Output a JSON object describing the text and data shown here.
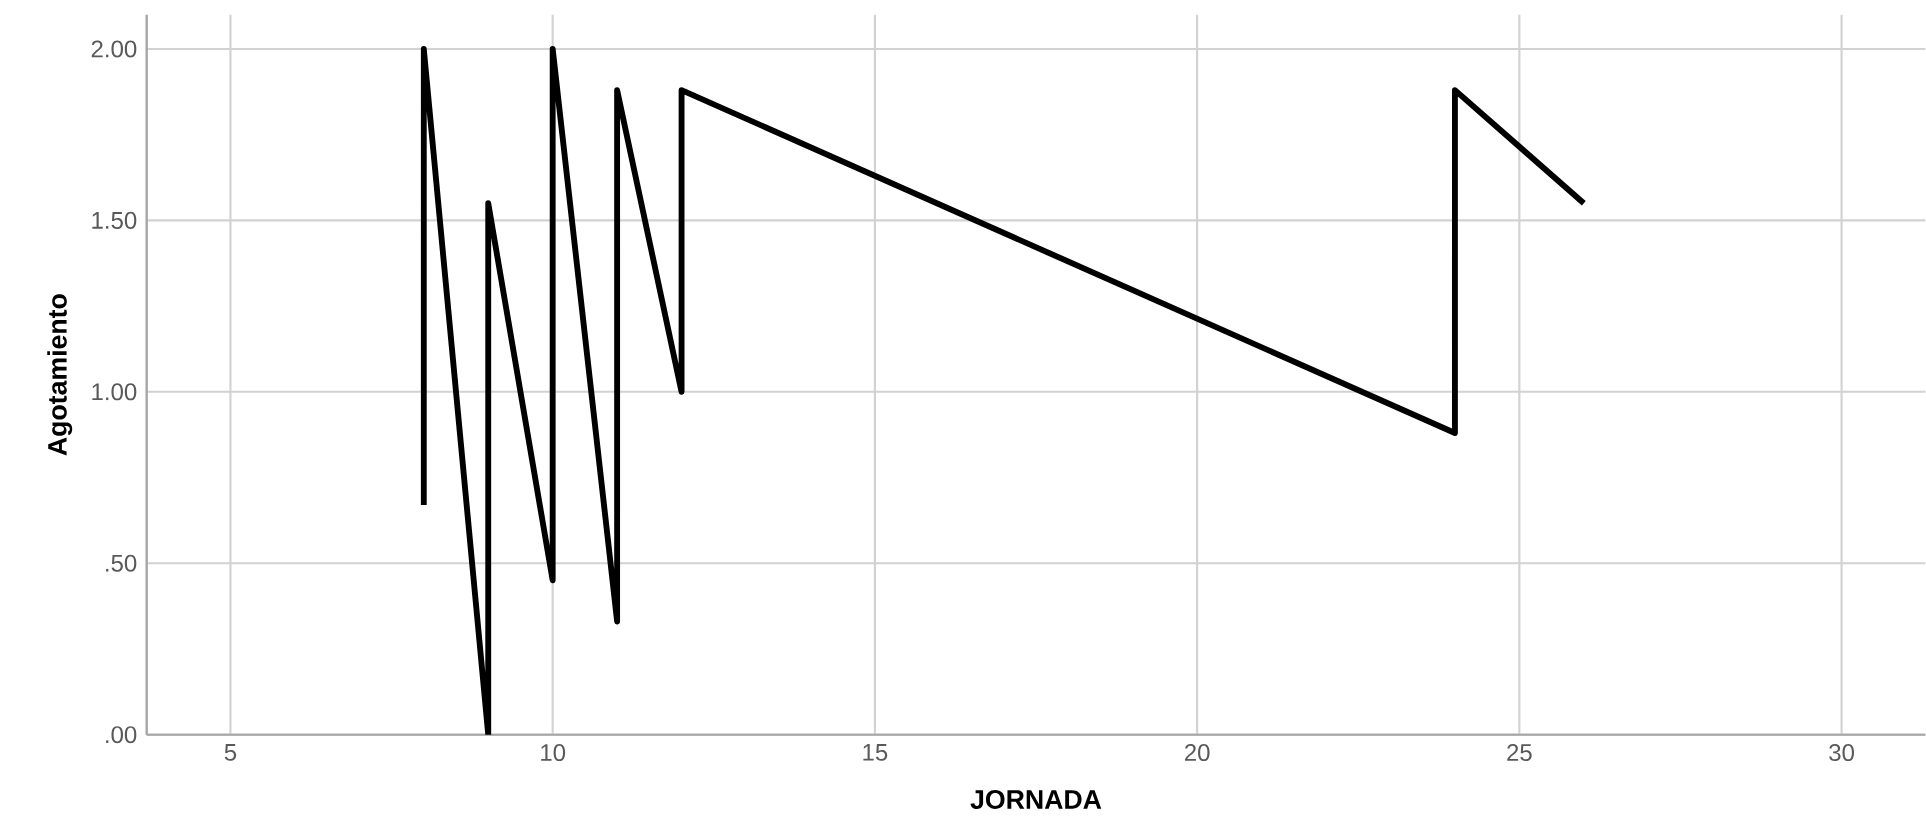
{
  "chart_data": {
    "type": "line",
    "xlabel": "JORNADA",
    "ylabel": "Agotamiento",
    "x": [
      8,
      8,
      9,
      9,
      10,
      10,
      11,
      11,
      12,
      12,
      24,
      24,
      26
    ],
    "series": [
      {
        "color": "#000000",
        "values": [
          0.67,
          2.0,
          0.0,
          1.55,
          0.45,
          2.0,
          0.33,
          1.88,
          1.0,
          1.88,
          0.88,
          1.88,
          1.55
        ]
      }
    ],
    "xlim": [
      3.7,
      31.3
    ],
    "ylim": [
      0,
      2.1
    ],
    "xticks": [
      5,
      10,
      15,
      20,
      25,
      30
    ],
    "yticks": [
      {
        "value": 0,
        "label": ".00"
      },
      {
        "value": 0.5,
        "label": ".50"
      },
      {
        "value": 1,
        "label": "1.00"
      },
      {
        "value": 1.5,
        "label": "1.50"
      },
      {
        "value": 2,
        "label": "2.00"
      }
    ],
    "grid": true,
    "marker": "none",
    "line_style": "solid"
  }
}
